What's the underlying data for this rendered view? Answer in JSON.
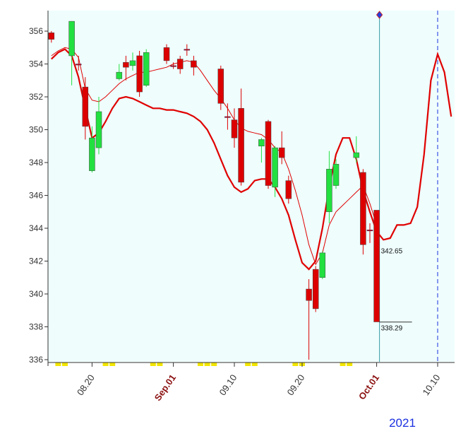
{
  "chart_data": {
    "type": "candlestick",
    "categories": [
      null,
      null,
      null,
      null,
      null,
      null,
      "08.20",
      null,
      null,
      null,
      null,
      null,
      null,
      null,
      null,
      null,
      null,
      null,
      "Sep.01",
      null,
      null,
      null,
      null,
      null,
      null,
      null,
      null,
      "09.10",
      null,
      null,
      null,
      null,
      null,
      null,
      null,
      null,
      null,
      "09.20",
      null,
      null,
      null,
      null,
      null,
      null,
      null,
      null,
      null,
      null,
      "Oct.01",
      null,
      null,
      null,
      null,
      null,
      null,
      null,
      null,
      "10.10",
      null,
      null
    ],
    "open": [
      355.9,
      null,
      null,
      354.5,
      354.0,
      352.6,
      347.5,
      348.9,
      null,
      null,
      353.1,
      354.1,
      353.9,
      354.5,
      352.7,
      null,
      null,
      355.0,
      353.9,
      354.3,
      354.9,
      354.2,
      null,
      null,
      null,
      353.7,
      350.8,
      350.6,
      351.3,
      null,
      null,
      349.0,
      350.5,
      346.5,
      348.9,
      346.9,
      null,
      null,
      340.3,
      341.5,
      341.0,
      345.0,
      346.6,
      null,
      null,
      348.3,
      347.4,
      343.9,
      345.1,
      null,
      null,
      null,
      null,
      null,
      null,
      null,
      null,
      null,
      null,
      null
    ],
    "high": [
      356.0,
      null,
      null,
      356.6,
      354.5,
      353.2,
      350.2,
      352.0,
      null,
      null,
      354.0,
      354.5,
      354.7,
      354.8,
      354.9,
      null,
      null,
      355.2,
      354.1,
      354.5,
      355.2,
      354.5,
      null,
      null,
      null,
      353.9,
      351.6,
      351.3,
      352.5,
      null,
      null,
      349.5,
      350.6,
      349.0,
      349.9,
      347.2,
      null,
      null,
      340.9,
      341.7,
      342.6,
      348.7,
      348.2,
      null,
      null,
      349.6,
      347.6,
      344.3,
      345.1,
      null,
      null,
      null,
      null,
      null,
      null,
      null,
      null,
      null,
      null,
      null
    ],
    "low": [
      355.3,
      null,
      null,
      352.7,
      353.6,
      349.4,
      347.4,
      348.5,
      null,
      null,
      353.0,
      353.0,
      353.6,
      352.0,
      352.6,
      null,
      null,
      354.0,
      353.7,
      353.4,
      354.5,
      353.3,
      null,
      null,
      null,
      351.2,
      350.0,
      348.9,
      346.6,
      null,
      null,
      348.0,
      346.4,
      345.9,
      347.9,
      345.5,
      null,
      null,
      336.0,
      338.9,
      340.9,
      344.3,
      346.4,
      null,
      null,
      348.0,
      342.4,
      343.1,
      338.3,
      null,
      null,
      null,
      null,
      null,
      null,
      null,
      null,
      null,
      null,
      null
    ],
    "close": [
      355.5,
      null,
      null,
      356.6,
      354.0,
      350.2,
      349.5,
      351.1,
      null,
      null,
      353.5,
      353.8,
      354.2,
      352.3,
      354.7,
      null,
      null,
      354.2,
      353.9,
      353.7,
      354.9,
      353.8,
      null,
      null,
      null,
      351.6,
      350.8,
      349.5,
      346.8,
      null,
      null,
      349.4,
      346.6,
      348.9,
      348.3,
      345.8,
      null,
      null,
      339.6,
      339.1,
      342.5,
      347.6,
      347.9,
      null,
      null,
      348.6,
      343.0,
      343.9,
      338.3,
      null,
      null,
      null,
      null,
      null,
      null,
      null,
      null,
      null,
      null,
      null
    ],
    "up_color": "#22e040",
    "down_color": "#dd0000",
    "lines": [
      {
        "color": "#e00000",
        "width": 1,
        "values": [
          354.5,
          354.8,
          355.0,
          354.9,
          354.4,
          352.5,
          351.8,
          351.7,
          352.0,
          352.4,
          352.8,
          353.1,
          353.3,
          353.5,
          353.5,
          353.6,
          353.7,
          353.8,
          354.0,
          354.1,
          354.2,
          354.1,
          353.6,
          353.0,
          352.4,
          351.9,
          351.3,
          350.6,
          350.1,
          349.9,
          349.8,
          349.7,
          349.4,
          348.9,
          348.6,
          347.6,
          346.3,
          344.8,
          343.0,
          341.8,
          342.5,
          344.2,
          345.0,
          345.4,
          345.8,
          346.2,
          346.6,
          345.5,
          344.2,
          null,
          null,
          null,
          null,
          null,
          null,
          null,
          null,
          null,
          null,
          null
        ]
      },
      {
        "color": "#e00000",
        "width": 2.2,
        "values": [
          354.3,
          354.7,
          354.9,
          354.5,
          353.2,
          351.3,
          349.5,
          349.8,
          350.5,
          351.3,
          351.9,
          352.0,
          351.9,
          351.7,
          351.5,
          351.3,
          351.3,
          351.2,
          351.2,
          351.1,
          351.0,
          350.8,
          350.5,
          350.0,
          349.2,
          348.2,
          347.2,
          346.5,
          346.2,
          346.4,
          346.9,
          347.0,
          347.0,
          346.5,
          345.8,
          344.8,
          343.3,
          341.9,
          341.5,
          342.0,
          344.0,
          346.5,
          348.5,
          349.5,
          349.5,
          348.2,
          346.3,
          345.0,
          343.8,
          343.3,
          343.4,
          344.2,
          344.2,
          344.3,
          345.3,
          348.5,
          353.0,
          354.6,
          353.5,
          350.8
        ]
      }
    ],
    "annotations": [
      {
        "value": 342.65,
        "label": "342.65"
      },
      {
        "value": 338.29,
        "label": "338.29"
      }
    ],
    "year": "2021",
    "ylim": [
      335.87,
      357.25
    ],
    "yticks": [
      336,
      338,
      340,
      342,
      344,
      346,
      348,
      350,
      352,
      354,
      356
    ]
  }
}
